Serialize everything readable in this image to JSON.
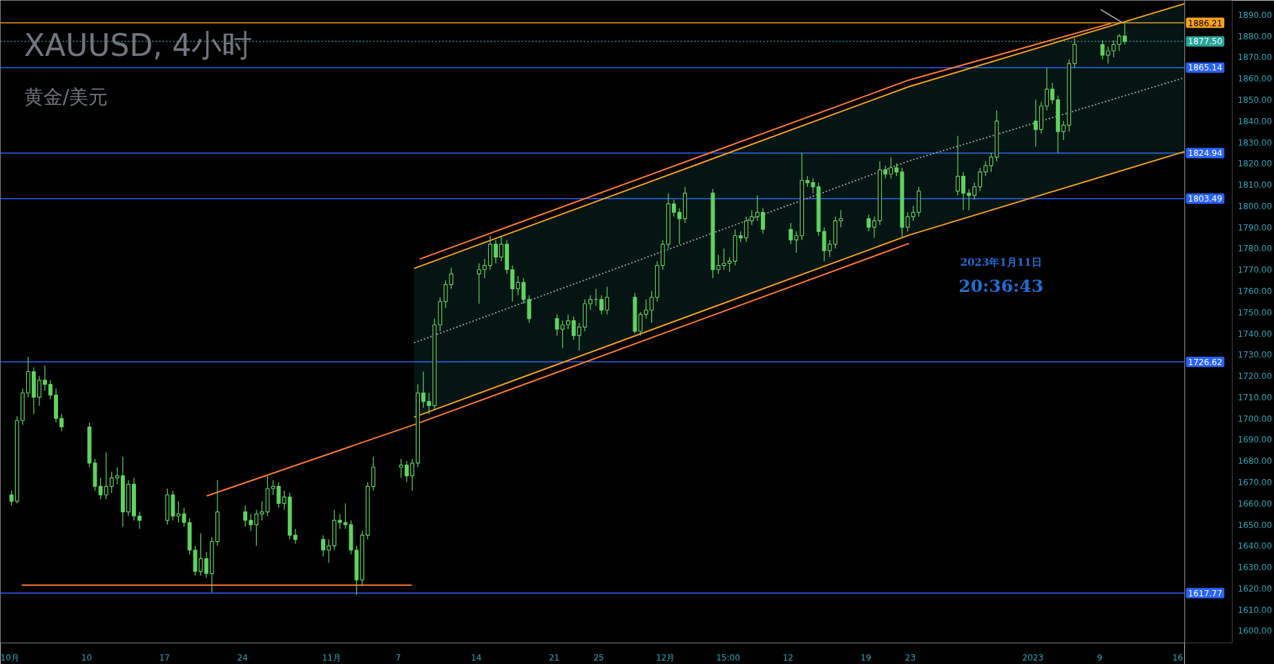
{
  "chart_data": {
    "type": "candlestick",
    "title": "XAUUSD, 4小时",
    "subtitle": "黄金/美元",
    "x": [
      "2022-10-03T06:00",
      "2022-10-03T18:00",
      "2022-10-04T06:00",
      "2022-10-04T18:00",
      "2022-10-05T06:00",
      "2022-10-05T18:00",
      "2022-10-06T06:00",
      "2022-10-06T18:00",
      "2022-10-07T06:00",
      "2022-10-07T18:00",
      "2022-10-10T06:00",
      "2022-10-10T18:00",
      "2022-10-11T06:00",
      "2022-10-11T18:00",
      "2022-10-12T06:00",
      "2022-10-12T18:00",
      "2022-10-13T06:00",
      "2022-10-13T18:00",
      "2022-10-14T06:00",
      "2022-10-14T18:00",
      "2022-10-17T06:00",
      "2022-10-17T18:00",
      "2022-10-18T06:00",
      "2022-10-18T18:00",
      "2022-10-19T06:00",
      "2022-10-19T18:00",
      "2022-10-20T06:00",
      "2022-10-20T18:00",
      "2022-10-21T06:00",
      "2022-10-21T18:00",
      "2022-10-24T06:00",
      "2022-10-24T18:00",
      "2022-10-25T06:00",
      "2022-10-25T18:00",
      "2022-10-26T06:00",
      "2022-10-26T18:00",
      "2022-10-27T06:00",
      "2022-10-27T18:00",
      "2022-10-28T06:00",
      "2022-10-28T18:00",
      "2022-10-31T06:00",
      "2022-10-31T18:00",
      "2022-11-01T06:00",
      "2022-11-01T18:00",
      "2022-11-02T06:00",
      "2022-11-02T18:00",
      "2022-11-03T06:00",
      "2022-11-03T18:00",
      "2022-11-04T06:00",
      "2022-11-04T18:00",
      "2022-11-07T06:00",
      "2022-11-07T18:00",
      "2022-11-08T06:00",
      "2022-11-08T18:00",
      "2022-11-09T06:00",
      "2022-11-09T18:00",
      "2022-11-10T06:00",
      "2022-11-10T18:00",
      "2022-11-11T06:00",
      "2022-11-11T18:00",
      "2022-11-14T06:00",
      "2022-11-14T18:00",
      "2022-11-15T06:00",
      "2022-11-15T18:00",
      "2022-11-16T06:00",
      "2022-11-16T18:00",
      "2022-11-17T06:00",
      "2022-11-17T18:00",
      "2022-11-18T06:00",
      "2022-11-18T18:00",
      "2022-11-21T06:00",
      "2022-11-21T18:00",
      "2022-11-22T06:00",
      "2022-11-22T18:00",
      "2022-11-23T06:00",
      "2022-11-23T18:00",
      "2022-11-24T06:00",
      "2022-11-24T18:00",
      "2022-11-25T06:00",
      "2022-11-25T18:00",
      "2022-11-28T06:00",
      "2022-11-28T18:00",
      "2022-11-29T06:00",
      "2022-11-29T18:00",
      "2022-11-30T06:00",
      "2022-11-30T18:00",
      "2022-12-01T06:00",
      "2022-12-01T18:00",
      "2022-12-02T06:00",
      "2022-12-02T18:00",
      "2022-12-05T06:00",
      "2022-12-05T18:00",
      "2022-12-06T06:00",
      "2022-12-06T18:00",
      "2022-12-07T06:00",
      "2022-12-07T18:00",
      "2022-12-08T06:00",
      "2022-12-08T18:00",
      "2022-12-09T06:00",
      "2022-12-09T18:00",
      "2022-12-12T06:00",
      "2022-12-12T18:00",
      "2022-12-13T06:00",
      "2022-12-13T18:00",
      "2022-12-14T06:00",
      "2022-12-14T18:00",
      "2022-12-15T06:00",
      "2022-12-15T18:00",
      "2022-12-16T06:00",
      "2022-12-16T18:00",
      "2022-12-19T06:00",
      "2022-12-19T18:00",
      "2022-12-20T06:00",
      "2022-12-20T18:00",
      "2022-12-21T06:00",
      "2022-12-21T18:00",
      "2022-12-22T06:00",
      "2022-12-22T18:00",
      "2022-12-23T06:00",
      "2022-12-23T18:00",
      "2022-12-27T06:00",
      "2022-12-27T18:00",
      "2022-12-28T06:00",
      "2022-12-28T18:00",
      "2022-12-29T06:00",
      "2022-12-29T18:00",
      "2022-12-30T06:00",
      "2022-12-30T18:00",
      "2023-01-03T06:00",
      "2023-01-03T18:00",
      "2023-01-04T06:00",
      "2023-01-04T18:00",
      "2023-01-05T06:00",
      "2023-01-05T18:00",
      "2023-01-06T06:00",
      "2023-01-06T18:00",
      "2023-01-09T06:00",
      "2023-01-09T18:00",
      "2023-01-10T06:00",
      "2023-01-10T18:00",
      "2023-01-11T06:00"
    ],
    "ohlc": [
      [
        1664,
        1666,
        1659,
        1661
      ],
      [
        1661,
        1701,
        1660,
        1699
      ],
      [
        1699,
        1714,
        1697,
        1712
      ],
      [
        1712,
        1729,
        1710,
        1722
      ],
      [
        1722,
        1724,
        1702,
        1710
      ],
      [
        1710,
        1720,
        1706,
        1718
      ],
      [
        1718,
        1725,
        1713,
        1716
      ],
      [
        1716,
        1718,
        1709,
        1711
      ],
      [
        1711,
        1714,
        1698,
        1700
      ],
      [
        1700,
        1702,
        1694,
        1696
      ],
      [
        1696,
        1698,
        1677,
        1679
      ],
      [
        1679,
        1681,
        1666,
        1668
      ],
      [
        1668,
        1672,
        1662,
        1664
      ],
      [
        1664,
        1684,
        1662,
        1668
      ],
      [
        1668,
        1675,
        1665,
        1672
      ],
      [
        1672,
        1677,
        1669,
        1673
      ],
      [
        1673,
        1682,
        1649,
        1656
      ],
      [
        1656,
        1671,
        1654,
        1669
      ],
      [
        1669,
        1672,
        1652,
        1654
      ],
      [
        1654,
        1656,
        1648,
        1652
      ],
      [
        1652,
        1667,
        1650,
        1664
      ],
      [
        1664,
        1666,
        1652,
        1654
      ],
      [
        1654,
        1661,
        1651,
        1655
      ],
      [
        1655,
        1658,
        1649,
        1651
      ],
      [
        1651,
        1653,
        1636,
        1638
      ],
      [
        1638,
        1640,
        1626,
        1628
      ],
      [
        1628,
        1646,
        1626,
        1634
      ],
      [
        1634,
        1637,
        1625,
        1627
      ],
      [
        1627,
        1644,
        1618,
        1642
      ],
      [
        1642,
        1671,
        1640,
        1656
      ],
      [
        1656,
        1659,
        1649,
        1652
      ],
      [
        1652,
        1655,
        1647,
        1650
      ],
      [
        1650,
        1657,
        1640,
        1655
      ],
      [
        1655,
        1661,
        1652,
        1656
      ],
      [
        1656,
        1673,
        1654,
        1667
      ],
      [
        1667,
        1671,
        1664,
        1668
      ],
      [
        1668,
        1670,
        1658,
        1660
      ],
      [
        1660,
        1666,
        1657,
        1663
      ],
      [
        1663,
        1665,
        1643,
        1645
      ],
      [
        1645,
        1648,
        1641,
        1643
      ],
      [
        1643,
        1645,
        1635,
        1638
      ],
      [
        1638,
        1643,
        1632,
        1640
      ],
      [
        1640,
        1657,
        1638,
        1652
      ],
      [
        1652,
        1655,
        1648,
        1651
      ],
      [
        1651,
        1660,
        1648,
        1650
      ],
      [
        1650,
        1652,
        1636,
        1638
      ],
      [
        1638,
        1640,
        1617,
        1624
      ],
      [
        1624,
        1647,
        1621,
        1645
      ],
      [
        1645,
        1670,
        1643,
        1668
      ],
      [
        1668,
        1682,
        1666,
        1677
      ],
      [
        1677,
        1681,
        1672,
        1678
      ],
      [
        1678,
        1680,
        1670,
        1673
      ],
      [
        1673,
        1681,
        1666,
        1679
      ],
      [
        1679,
        1716,
        1677,
        1712
      ],
      [
        1712,
        1722,
        1705,
        1708
      ],
      [
        1708,
        1712,
        1702,
        1706
      ],
      [
        1706,
        1747,
        1704,
        1744
      ],
      [
        1744,
        1757,
        1741,
        1755
      ],
      [
        1755,
        1765,
        1752,
        1763
      ],
      [
        1763,
        1771,
        1761,
        1768
      ],
      [
        1768,
        1773,
        1754,
        1770
      ],
      [
        1770,
        1775,
        1766,
        1772
      ],
      [
        1772,
        1786,
        1770,
        1782
      ],
      [
        1782,
        1784,
        1773,
        1776
      ],
      [
        1776,
        1786,
        1774,
        1782
      ],
      [
        1782,
        1784,
        1768,
        1770
      ],
      [
        1770,
        1772,
        1755,
        1761
      ],
      [
        1761,
        1767,
        1758,
        1764
      ],
      [
        1764,
        1766,
        1754,
        1756
      ],
      [
        1756,
        1758,
        1745,
        1747
      ],
      [
        1747,
        1749,
        1739,
        1742
      ],
      [
        1742,
        1746,
        1733,
        1744
      ],
      [
        1744,
        1749,
        1742,
        1746
      ],
      [
        1746,
        1748,
        1737,
        1739
      ],
      [
        1739,
        1745,
        1732,
        1743
      ],
      [
        1743,
        1756,
        1741,
        1754
      ],
      [
        1754,
        1758,
        1751,
        1756
      ],
      [
        1756,
        1761,
        1753,
        1756
      ],
      [
        1756,
        1758,
        1749,
        1751
      ],
      [
        1751,
        1762,
        1749,
        1757
      ],
      [
        1757,
        1759,
        1740,
        1741
      ],
      [
        1741,
        1750,
        1739,
        1749
      ],
      [
        1749,
        1756,
        1747,
        1751
      ],
      [
        1751,
        1760,
        1745,
        1757
      ],
      [
        1757,
        1774,
        1755,
        1772
      ],
      [
        1772,
        1784,
        1770,
        1782
      ],
      [
        1782,
        1806,
        1780,
        1801
      ],
      [
        1801,
        1803,
        1795,
        1797
      ],
      [
        1797,
        1799,
        1782,
        1794
      ],
      [
        1794,
        1809,
        1792,
        1806
      ],
      [
        1806,
        1808,
        1766,
        1770
      ],
      [
        1770,
        1777,
        1768,
        1772
      ],
      [
        1772,
        1780,
        1770,
        1773
      ],
      [
        1773,
        1776,
        1769,
        1774
      ],
      [
        1774,
        1789,
        1772,
        1786
      ],
      [
        1786,
        1788,
        1783,
        1785
      ],
      [
        1785,
        1795,
        1783,
        1793
      ],
      [
        1793,
        1798,
        1791,
        1795
      ],
      [
        1795,
        1805,
        1793,
        1797
      ],
      [
        1797,
        1799,
        1787,
        1789
      ],
      [
        1789,
        1792,
        1782,
        1784
      ],
      [
        1784,
        1788,
        1778,
        1786
      ],
      [
        1786,
        1825,
        1784,
        1812
      ],
      [
        1812,
        1814,
        1809,
        1811
      ],
      [
        1811,
        1813,
        1806,
        1809
      ],
      [
        1809,
        1811,
        1786,
        1788
      ],
      [
        1788,
        1790,
        1774,
        1779
      ],
      [
        1779,
        1784,
        1776,
        1782
      ],
      [
        1782,
        1795,
        1780,
        1793
      ],
      [
        1793,
        1798,
        1790,
        1794
      ],
      [
        1794,
        1796,
        1788,
        1790
      ],
      [
        1790,
        1795,
        1785,
        1793
      ],
      [
        1793,
        1821,
        1791,
        1817
      ],
      [
        1817,
        1819,
        1813,
        1815
      ],
      [
        1815,
        1823,
        1813,
        1818
      ],
      [
        1818,
        1820,
        1814,
        1816
      ],
      [
        1816,
        1818,
        1785,
        1790
      ],
      [
        1790,
        1797,
        1788,
        1795
      ],
      [
        1795,
        1800,
        1793,
        1797
      ],
      [
        1797,
        1809,
        1795,
        1807
      ],
      [
        1807,
        1833,
        1805,
        1814
      ],
      [
        1814,
        1816,
        1798,
        1806
      ],
      [
        1806,
        1808,
        1798,
        1805
      ],
      [
        1805,
        1811,
        1803,
        1809
      ],
      [
        1809,
        1818,
        1807,
        1816
      ],
      [
        1816,
        1821,
        1814,
        1819
      ],
      [
        1819,
        1825,
        1816,
        1823
      ],
      [
        1823,
        1845,
        1821,
        1840
      ],
      [
        1840,
        1850,
        1828,
        1836
      ],
      [
        1836,
        1849,
        1834,
        1847
      ],
      [
        1847,
        1865,
        1845,
        1855
      ],
      [
        1855,
        1858,
        1848,
        1850
      ],
      [
        1850,
        1852,
        1825,
        1835
      ],
      [
        1835,
        1840,
        1831,
        1838
      ],
      [
        1838,
        1869,
        1835,
        1867
      ],
      [
        1867,
        1879,
        1865,
        1876
      ],
      [
        1876,
        1878,
        1869,
        1871
      ],
      [
        1871,
        1875,
        1867,
        1873
      ],
      [
        1873,
        1878,
        1870,
        1876
      ],
      [
        1876,
        1881,
        1873,
        1880
      ],
      [
        1880,
        1886,
        1876,
        1877.5
      ]
    ],
    "color": "#5fd35f",
    "series": [
      {
        "type": "line",
        "x": [
          "2022-11-08T10:00",
          "2022-12-22T21:00",
          "2023-01-16T15:00"
        ],
        "values": [
          1735.6,
          1821.2,
          1860.4
        ],
        "lower": [
          1700.6,
          1786.3,
          1825.6
        ],
        "upper": [
          1770.6,
          1856.2,
          1895.2
        ],
        "color": "#9e9e9e",
        "line_style": "dotted"
      },
      {
        "type": "line",
        "x": [
          "2022-11-08T22:00",
          "2022-12-22T21:00",
          "2023-01-10T01:00"
        ],
        "values": [
          1775,
          1859.3,
          1886
        ],
        "color": "#ff7b30"
      },
      {
        "type": "line",
        "x": [
          "2022-10-20T19:00",
          "2022-11-08T16:00",
          "2022-12-22T21:00"
        ],
        "values": [
          1663.5,
          1697.5,
          1782.4
        ],
        "color": "#ff7b30"
      },
      {
        "type": "line",
        "x": [
          "2022-10-04T04:00",
          "2022-11-08T05:00"
        ],
        "values": [
          1621.5,
          1621.5
        ],
        "color": "#ff7b30"
      },
      {
        "type": "line",
        "x": [
          "2023-01-09T02:00",
          "2023-01-11T03:00"
        ],
        "values": [
          1892.5,
          1886
        ],
        "color": "#9e9e9e"
      },
      {
        "type": "line",
        "x": [
          "2022-11-08T10:00",
          "2022-12-22T21:00",
          "2023-01-16T15:00"
        ],
        "values": [
          1770.6,
          1856.2,
          1895.2
        ],
        "color": "#f7a21b"
      },
      {
        "type": "line",
        "x": [
          "2022-11-08T10:00",
          "2022-12-22T21:00",
          "2023-01-16T15:00"
        ],
        "values": [
          1700.6,
          1786.3,
          1825.6
        ],
        "color": "#f7a21b"
      }
    ],
    "ref_lines": [
      {
        "axis": "y",
        "value": 1886.21,
        "label": "1886.21",
        "color": "#f7a21b"
      },
      {
        "axis": "y",
        "value": 1877.5,
        "label": "1877.50",
        "color": "#26a69a",
        "line_style": "dotted"
      },
      {
        "axis": "y",
        "value": 1865.14,
        "label": "1865.14",
        "color": "#2962ff"
      },
      {
        "axis": "y",
        "value": 1824.94,
        "label": "1824.94",
        "color": "#2962ff"
      },
      {
        "axis": "y",
        "value": 1803.49,
        "label": "1803.49",
        "color": "#2962ff"
      },
      {
        "axis": "y",
        "value": 1726.62,
        "label": "1726.62",
        "color": "#2962ff"
      },
      {
        "axis": "y",
        "value": 1617.77,
        "label": "1617.77",
        "color": "#2962ff"
      }
    ],
    "annotations": [
      "2023年1月11日",
      "20:36:43"
    ],
    "xlim": [
      "2022-10-02T06:00",
      "2023-01-16T15:00"
    ],
    "xticks": [
      {
        "value": "2022-10-03",
        "label": "10月"
      },
      {
        "value": "2022-10-10",
        "label": "10"
      },
      {
        "value": "2022-10-17",
        "label": "17"
      },
      {
        "value": "2022-10-24",
        "label": "24"
      },
      {
        "value": "2022-11-01",
        "label": "11月"
      },
      {
        "value": "2022-11-07",
        "label": "7"
      },
      {
        "value": "2022-11-14",
        "label": "14"
      },
      {
        "value": "2022-11-21",
        "label": "21"
      },
      {
        "value": "2022-11-25",
        "label": "25"
      },
      {
        "value": "2022-12-01",
        "label": "12月"
      },
      {
        "value": "2022-12-06T15:00",
        "label": "15:00"
      },
      {
        "value": "2022-12-12",
        "label": "12"
      },
      {
        "value": "2022-12-19",
        "label": "19"
      },
      {
        "value": "2022-12-23",
        "label": "23"
      },
      {
        "value": "2023-01-03",
        "label": "2023"
      },
      {
        "value": "2023-01-09",
        "label": "9"
      },
      {
        "value": "2023-01-16",
        "label": "16"
      }
    ],
    "ylim": [
      1594.3,
      1896.8
    ],
    "yticks": [
      {
        "value": 1600,
        "label": "1600.00"
      },
      {
        "value": 1610,
        "label": "1610.00"
      },
      {
        "value": 1620,
        "label": "1620.00"
      },
      {
        "value": 1630,
        "label": "1630.00"
      },
      {
        "value": 1640,
        "label": "1640.00"
      },
      {
        "value": 1650,
        "label": "1650.00"
      },
      {
        "value": 1660,
        "label": "1660.00"
      },
      {
        "value": 1670,
        "label": "1670.00"
      },
      {
        "value": 1680,
        "label": "1680.00"
      },
      {
        "value": 1690,
        "label": "1690.00"
      },
      {
        "value": 1700,
        "label": "1700.00"
      },
      {
        "value": 1710,
        "label": "1710.00"
      },
      {
        "value": 1720,
        "label": "1720.00"
      },
      {
        "value": 1730,
        "label": "1730.00"
      },
      {
        "value": 1740,
        "label": "1740.00"
      },
      {
        "value": 1750,
        "label": "1750.00"
      },
      {
        "value": 1760,
        "label": "1760.00"
      },
      {
        "value": 1770,
        "label": "1770.00"
      },
      {
        "value": 1780,
        "label": "1780.00"
      },
      {
        "value": 1790,
        "label": "1790.00"
      },
      {
        "value": 1800,
        "label": "1800.00"
      },
      {
        "value": 1810,
        "label": "1810.00"
      },
      {
        "value": 1820,
        "label": "1820.00"
      },
      {
        "value": 1830,
        "label": "1830.00"
      },
      {
        "value": 1840,
        "label": "1840.00"
      },
      {
        "value": 1850,
        "label": "1850.00"
      },
      {
        "value": 1860,
        "label": "1860.00"
      },
      {
        "value": 1870,
        "label": "1870.00"
      },
      {
        "value": 1880,
        "label": "1880.00"
      },
      {
        "value": 1890,
        "label": "1890.00"
      }
    ]
  }
}
